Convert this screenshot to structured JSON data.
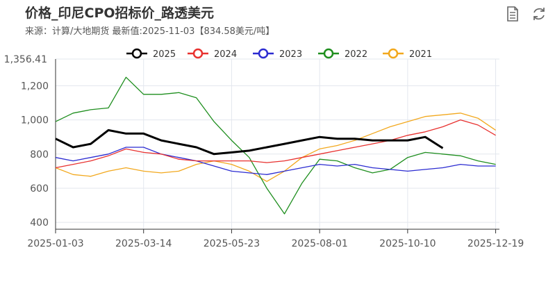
{
  "header": {
    "title": "价格_印尼CPO招标价_路透美元",
    "subtitle": "来源：计算/大地期货  最新值:2025-11-03【834.58美元/吨】"
  },
  "toolbar": {
    "data_view_icon": "document-icon",
    "refresh_icon": "refresh-icon"
  },
  "chart_data": {
    "type": "line",
    "x_tick_labels": [
      "2025-01-03",
      "2025-03-14",
      "2025-05-23",
      "2025-08-01",
      "2025-10-10",
      "2025-12-19"
    ],
    "x_range": [
      "2025-01-03",
      "2025-12-22"
    ],
    "y_ticks": [
      400,
      600,
      800,
      1000,
      1200
    ],
    "y_max_label": "1,356.41",
    "ylim": [
      360,
      1356.41
    ],
    "grid": true,
    "legend_position": "top",
    "x": [
      "01-03",
      "01-17",
      "01-31",
      "02-14",
      "02-28",
      "03-14",
      "03-28",
      "04-11",
      "04-25",
      "05-09",
      "05-23",
      "06-06",
      "06-20",
      "07-04",
      "07-18",
      "08-01",
      "08-15",
      "08-29",
      "09-12",
      "09-26",
      "10-10",
      "10-24",
      "11-07",
      "11-21",
      "12-05",
      "12-19"
    ],
    "series": [
      {
        "name": "2025",
        "color": "#000000",
        "width": 3,
        "values": [
          890,
          840,
          860,
          940,
          920,
          920,
          880,
          860,
          840,
          800,
          810,
          820,
          840,
          860,
          880,
          900,
          890,
          890,
          880,
          880,
          880,
          900,
          834.58,
          null,
          null,
          null
        ]
      },
      {
        "name": "2024",
        "color": "#e8312f",
        "width": 1.3,
        "values": [
          720,
          740,
          760,
          790,
          830,
          810,
          800,
          770,
          760,
          760,
          760,
          760,
          750,
          760,
          780,
          800,
          820,
          840,
          860,
          880,
          910,
          930,
          960,
          1000,
          970,
          910
        ]
      },
      {
        "name": "2023",
        "color": "#2b2bd1",
        "width": 1.3,
        "values": [
          780,
          760,
          780,
          800,
          840,
          840,
          800,
          780,
          760,
          730,
          700,
          690,
          680,
          700,
          720,
          740,
          730,
          740,
          720,
          710,
          700,
          710,
          720,
          740,
          730,
          730
        ]
      },
      {
        "name": "2022",
        "color": "#1e8e1e",
        "width": 1.3,
        "values": [
          990,
          1040,
          1060,
          1070,
          1250,
          1150,
          1150,
          1160,
          1130,
          990,
          880,
          780,
          600,
          450,
          630,
          770,
          760,
          720,
          690,
          710,
          780,
          810,
          800,
          790,
          760,
          740
        ]
      },
      {
        "name": "2021",
        "color": "#f2a81d",
        "width": 1.3,
        "values": [
          720,
          680,
          670,
          700,
          720,
          700,
          690,
          700,
          740,
          760,
          740,
          700,
          640,
          700,
          780,
          830,
          850,
          880,
          920,
          960,
          990,
          1020,
          1030,
          1040,
          1010,
          940
        ]
      }
    ]
  }
}
